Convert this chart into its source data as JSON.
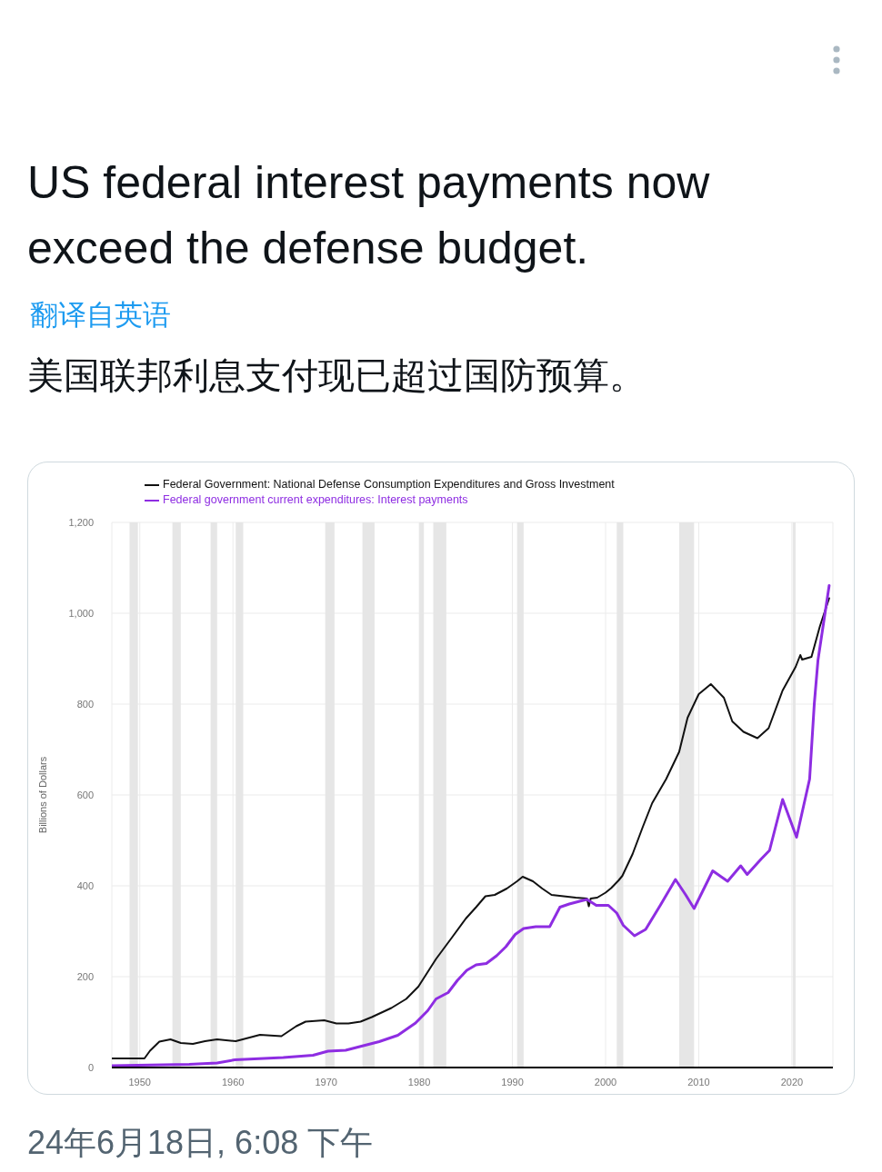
{
  "chart_data": {
    "type": "line",
    "title": "US federal interest payments now exceed the defense budget.",
    "subtitle": "美国联邦利息支付现已超过国防预算。",
    "annotations": [
      "翻译自英语",
      "24年6月18日, 6:08 下午"
    ],
    "ylabel": "Billions of Dollars",
    "legend": "top left",
    "grid": true,
    "xlim": [
      1947,
      2024.4
    ],
    "xticks": [
      1950,
      1960,
      1970,
      1980,
      1990,
      2000,
      2010,
      2020
    ],
    "ylim": [
      0,
      1200
    ],
    "yticks": [
      0,
      200,
      400,
      600,
      800,
      {
        "value": 1000,
        "label": "1,000"
      },
      {
        "value": 1200,
        "label": "1,200"
      }
    ],
    "bands": [
      {
        "axis": "x",
        "from": 1948.9,
        "to": 1949.8,
        "color": "#e6e6e6"
      },
      {
        "axis": "x",
        "from": 1953.5,
        "to": 1954.4,
        "color": "#e6e6e6"
      },
      {
        "axis": "x",
        "from": 1957.6,
        "to": 1958.3,
        "color": "#e6e6e6"
      },
      {
        "axis": "x",
        "from": 1960.3,
        "to": 1961.1,
        "color": "#e6e6e6"
      },
      {
        "axis": "x",
        "from": 1969.9,
        "to": 1970.9,
        "color": "#e6e6e6"
      },
      {
        "axis": "x",
        "from": 1973.9,
        "to": 1975.2,
        "color": "#e6e6e6"
      },
      {
        "axis": "x",
        "from": 1980.0,
        "to": 1980.5,
        "color": "#e6e6e6"
      },
      {
        "axis": "x",
        "from": 1981.5,
        "to": 1982.9,
        "color": "#e6e6e6"
      },
      {
        "axis": "x",
        "from": 1990.5,
        "to": 1991.2,
        "color": "#e6e6e6"
      },
      {
        "axis": "x",
        "from": 2001.2,
        "to": 2001.9,
        "color": "#e6e6e6"
      },
      {
        "axis": "x",
        "from": 2007.9,
        "to": 2009.5,
        "color": "#e6e6e6"
      },
      {
        "axis": "x",
        "from": 2020.1,
        "to": 2020.4,
        "color": "#e6e6e6"
      }
    ],
    "series": [
      {
        "name": "Federal Government: National Defense Consumption Expenditures and Gross Investment",
        "color": "#111111",
        "x": [
          1947,
          1950.5,
          1951.1,
          1952.1,
          1953.3,
          1954.4,
          1955.7,
          1957,
          1958.3,
          1960.3,
          1961.6,
          1962.9,
          1965.2,
          1966.8,
          1967.8,
          1969.8,
          1971.1,
          1972.4,
          1973.7,
          1974.9,
          1977,
          1978.6,
          1979.9,
          1981.8,
          1983.5,
          1985,
          1986.1,
          1987.1,
          1988.1,
          1989.4,
          1990.5,
          1991.1,
          1992.2,
          1993.2,
          1994.2,
          1995.5,
          1996.8,
          1998,
          1998.2,
          1998.4,
          1999.1,
          2000,
          2000.6,
          2001.4,
          2001.8,
          2002.9,
          2004,
          2005,
          2006.5,
          2007.9,
          2008.8,
          2010,
          2011.3,
          2012.7,
          2013.6,
          2014.8,
          2016.3,
          2017.5,
          2019,
          2020.4,
          2020.9,
          2021.1,
          2022.1,
          2023,
          2024
        ],
        "values": [
          20,
          20,
          37,
          57,
          62,
          54,
          52,
          58,
          62,
          58,
          65,
          72,
          69,
          91,
          101,
          104,
          97,
          97,
          101,
          111,
          131,
          151,
          178,
          239,
          286,
          328,
          353,
          377,
          380,
          394,
          410,
          420,
          410,
          394,
          380,
          377,
          374,
          372,
          355,
          372,
          374,
          385,
          395,
          412,
          422,
          470,
          530,
          582,
          635,
          695,
          770,
          822,
          844,
          814,
          762,
          739,
          725,
          747,
          830,
          882,
          908,
          898,
          904,
          971,
          1033
        ]
      },
      {
        "name": "Federal government current expenditures: Interest payments",
        "color": "#8e2de2",
        "x": [
          1947,
          1955.3,
          1958.3,
          1960.2,
          1965.4,
          1968.6,
          1970.2,
          1972.1,
          1973.8,
          1975.7,
          1977.7,
          1979.6,
          1980.9,
          1981.8,
          1983.1,
          1984.1,
          1985.1,
          1986.1,
          1987.2,
          1988.3,
          1989.3,
          1990.3,
          1991.2,
          1992.5,
          1994,
          1995.1,
          1996.1,
          1997.4,
          1998,
          1999,
          2000.3,
          2001.2,
          2001.9,
          2003.1,
          2004.3,
          2005.9,
          2007.5,
          2008.6,
          2009.5,
          2011.5,
          2013.1,
          2014.5,
          2015.2,
          2016.7,
          2017.6,
          2019,
          2020.5,
          2021.9,
          2022.4,
          2022.8,
          2024
        ],
        "values": [
          4,
          7,
          10,
          17,
          22,
          27,
          36,
          38,
          47,
          57,
          71,
          98,
          125,
          151,
          165,
          192,
          214,
          226,
          229,
          246,
          266,
          293,
          306,
          310,
          310,
          353,
          360,
          367,
          370,
          357,
          357,
          340,
          313,
          290,
          304,
          358,
          414,
          380,
          350,
          433,
          410,
          444,
          425,
          459,
          478,
          590,
          507,
          635,
          800,
          897,
          1061
        ]
      }
    ]
  }
}
